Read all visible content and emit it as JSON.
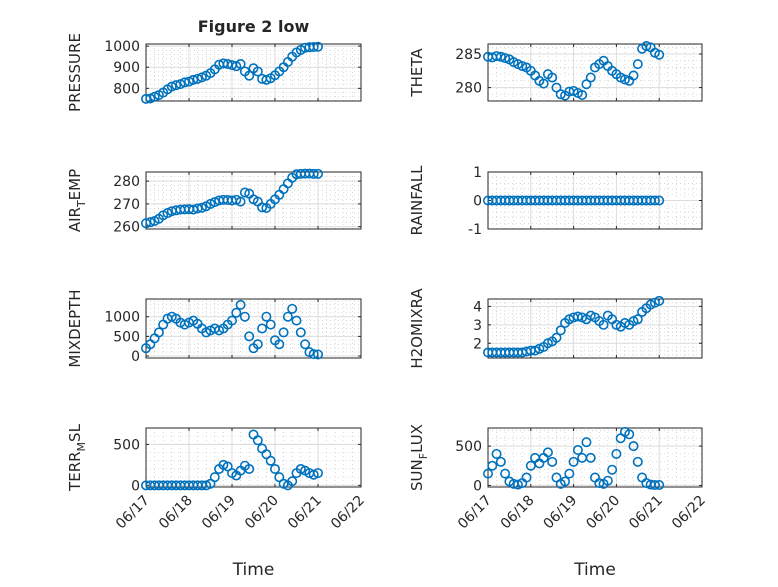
{
  "figure": {
    "xlabel": "Time",
    "xticks": [
      "06/17",
      "06/18",
      "06/19",
      "06/20",
      "06/21",
      "06/22"
    ],
    "marker_color": "#0072BD"
  },
  "chart_data": [
    {
      "type": "scatter",
      "title": "Figure 2 low",
      "ylabel_main": "PRESSURE",
      "ylabel_sub": "",
      "ylabel_tail": "",
      "ylim": [
        740,
        1010
      ],
      "yticks": [
        800,
        900,
        1000
      ],
      "ytick_labels": [
        "800",
        "900",
        "1000"
      ],
      "x": [
        0,
        0.1,
        0.2,
        0.3,
        0.4,
        0.5,
        0.6,
        0.7,
        0.8,
        0.9,
        1.0,
        1.1,
        1.2,
        1.3,
        1.4,
        1.5,
        1.6,
        1.7,
        1.8,
        1.9,
        2.0,
        2.1,
        2.2,
        2.3,
        2.4,
        2.5,
        2.6,
        2.7,
        2.8,
        2.9,
        3.0,
        3.1,
        3.2,
        3.3,
        3.4,
        3.5,
        3.6,
        3.7,
        3.8,
        3.9,
        4.0
      ],
      "y": [
        750,
        752,
        760,
        768,
        780,
        795,
        808,
        815,
        820,
        828,
        832,
        840,
        845,
        852,
        860,
        872,
        890,
        912,
        918,
        915,
        910,
        905,
        915,
        880,
        860,
        895,
        880,
        845,
        840,
        848,
        862,
        880,
        900,
        925,
        950,
        970,
        982,
        992,
        995,
        996,
        997
      ]
    },
    {
      "type": "scatter",
      "title": "",
      "ylabel_main": "THETA",
      "ylabel_sub": "",
      "ylabel_tail": "",
      "ylim": [
        278,
        286.5
      ],
      "yticks": [
        280,
        285
      ],
      "ytick_labels": [
        "280",
        "285"
      ],
      "x": [
        0,
        0.1,
        0.2,
        0.3,
        0.4,
        0.5,
        0.6,
        0.7,
        0.8,
        0.9,
        1.0,
        1.1,
        1.2,
        1.3,
        1.4,
        1.5,
        1.6,
        1.7,
        1.8,
        1.9,
        2.0,
        2.1,
        2.2,
        2.3,
        2.4,
        2.5,
        2.6,
        2.7,
        2.8,
        2.9,
        3.0,
        3.1,
        3.2,
        3.3,
        3.4,
        3.5,
        3.6,
        3.7,
        3.8,
        3.9,
        4.0
      ],
      "y": [
        284.6,
        284.5,
        284.7,
        284.6,
        284.4,
        284.2,
        283.8,
        283.5,
        283.2,
        283.0,
        282.5,
        281.8,
        281.0,
        280.6,
        282.0,
        281.5,
        280.0,
        279.0,
        278.8,
        279.4,
        279.5,
        279.2,
        278.9,
        280.5,
        281.5,
        283.0,
        283.5,
        284.0,
        283.2,
        282.5,
        282.0,
        281.5,
        281.2,
        281.0,
        281.8,
        283.5,
        285.8,
        286.2,
        286.0,
        285.2,
        284.9
      ]
    },
    {
      "type": "scatter",
      "title": "",
      "ylabel_main": "AIR",
      "ylabel_sub": "T",
      "ylabel_tail": "EMP",
      "ylim": [
        259,
        284
      ],
      "yticks": [
        260,
        270,
        280
      ],
      "ytick_labels": [
        "260",
        "270",
        "280"
      ],
      "x": [
        0,
        0.1,
        0.2,
        0.3,
        0.4,
        0.5,
        0.6,
        0.7,
        0.8,
        0.9,
        1.0,
        1.1,
        1.2,
        1.3,
        1.4,
        1.5,
        1.6,
        1.7,
        1.8,
        1.9,
        2.0,
        2.1,
        2.2,
        2.3,
        2.4,
        2.5,
        2.6,
        2.7,
        2.8,
        2.9,
        3.0,
        3.1,
        3.2,
        3.3,
        3.4,
        3.5,
        3.6,
        3.7,
        3.8,
        3.9,
        4.0
      ],
      "y": [
        261.5,
        262,
        262.5,
        263.5,
        265,
        266,
        266.8,
        267.2,
        267.5,
        267.6,
        267.7,
        267.5,
        268,
        268.3,
        269,
        270,
        270.8,
        271.5,
        271.8,
        271.7,
        271.5,
        271.8,
        271,
        275,
        274.5,
        272,
        271,
        268.5,
        268.2,
        270,
        272,
        274,
        276.5,
        279,
        281.5,
        283,
        283.2,
        283.3,
        283.3,
        283.2,
        283.2
      ]
    },
    {
      "type": "scatter",
      "title": "",
      "ylabel_main": "RAINFALL",
      "ylabel_sub": "",
      "ylabel_tail": "",
      "ylim": [
        -1,
        1
      ],
      "yticks": [
        -1,
        0,
        1
      ],
      "ytick_labels": [
        "-1",
        "0",
        "1"
      ],
      "x": [
        0,
        0.1,
        0.2,
        0.3,
        0.4,
        0.5,
        0.6,
        0.7,
        0.8,
        0.9,
        1.0,
        1.1,
        1.2,
        1.3,
        1.4,
        1.5,
        1.6,
        1.7,
        1.8,
        1.9,
        2.0,
        2.1,
        2.2,
        2.3,
        2.4,
        2.5,
        2.6,
        2.7,
        2.8,
        2.9,
        3.0,
        3.1,
        3.2,
        3.3,
        3.4,
        3.5,
        3.6,
        3.7,
        3.8,
        3.9,
        4.0
      ],
      "y": [
        0,
        0,
        0,
        0,
        0,
        0,
        0,
        0,
        0,
        0,
        0,
        0,
        0,
        0,
        0,
        0,
        0,
        0,
        0,
        0,
        0,
        0,
        0,
        0,
        0,
        0,
        0,
        0,
        0,
        0,
        0,
        0,
        0,
        0,
        0,
        0,
        0,
        0,
        0,
        0,
        0
      ]
    },
    {
      "type": "scatter",
      "title": "",
      "ylabel_main": "MIXDEPTH",
      "ylabel_sub": "",
      "ylabel_tail": "",
      "ylim": [
        -50,
        1450
      ],
      "yticks": [
        0,
        500,
        1000
      ],
      "ytick_labels": [
        "0",
        "500",
        "1000"
      ],
      "x": [
        0,
        0.1,
        0.2,
        0.3,
        0.4,
        0.5,
        0.6,
        0.7,
        0.8,
        0.9,
        1.0,
        1.1,
        1.2,
        1.3,
        1.4,
        1.5,
        1.6,
        1.7,
        1.8,
        1.9,
        2.0,
        2.1,
        2.2,
        2.3,
        2.4,
        2.5,
        2.6,
        2.7,
        2.8,
        2.9,
        3.0,
        3.1,
        3.2,
        3.3,
        3.4,
        3.5,
        3.6,
        3.7,
        3.8,
        3.9,
        4.0
      ],
      "y": [
        200,
        300,
        450,
        600,
        800,
        950,
        1000,
        950,
        850,
        800,
        850,
        900,
        820,
        700,
        600,
        650,
        700,
        650,
        700,
        800,
        900,
        1100,
        1300,
        1000,
        500,
        200,
        300,
        700,
        1000,
        800,
        400,
        300,
        600,
        1000,
        1200,
        900,
        600,
        300,
        100,
        50,
        40
      ]
    },
    {
      "type": "scatter",
      "title": "",
      "ylabel_main": "H2OMIXRA",
      "ylabel_sub": "",
      "ylabel_tail": "",
      "ylim": [
        1.2,
        4.4
      ],
      "yticks": [
        2,
        3,
        4
      ],
      "ytick_labels": [
        "2",
        "3",
        "4"
      ],
      "x": [
        0,
        0.1,
        0.2,
        0.3,
        0.4,
        0.5,
        0.6,
        0.7,
        0.8,
        0.9,
        1.0,
        1.1,
        1.2,
        1.3,
        1.4,
        1.5,
        1.6,
        1.7,
        1.8,
        1.9,
        2.0,
        2.1,
        2.2,
        2.3,
        2.4,
        2.5,
        2.6,
        2.7,
        2.8,
        2.9,
        3.0,
        3.1,
        3.2,
        3.3,
        3.4,
        3.5,
        3.6,
        3.7,
        3.8,
        3.9,
        4.0
      ],
      "y": [
        1.5,
        1.5,
        1.5,
        1.5,
        1.5,
        1.5,
        1.5,
        1.5,
        1.5,
        1.55,
        1.6,
        1.6,
        1.7,
        1.8,
        2.0,
        2.1,
        2.3,
        2.7,
        3.1,
        3.3,
        3.4,
        3.45,
        3.4,
        3.3,
        3.5,
        3.4,
        3.2,
        3.0,
        3.5,
        3.3,
        3.0,
        2.9,
        3.1,
        3.0,
        3.2,
        3.3,
        3.7,
        3.9,
        4.1,
        4.2,
        4.3
      ]
    },
    {
      "type": "scatter",
      "title": "",
      "ylabel_main": "TERR",
      "ylabel_sub": "M",
      "ylabel_tail": "SL",
      "ylim": [
        -20,
        700
      ],
      "yticks": [
        0,
        500
      ],
      "ytick_labels": [
        "0",
        "500"
      ],
      "x": [
        0,
        0.1,
        0.2,
        0.3,
        0.4,
        0.5,
        0.6,
        0.7,
        0.8,
        0.9,
        1.0,
        1.1,
        1.2,
        1.3,
        1.4,
        1.5,
        1.6,
        1.7,
        1.8,
        1.9,
        2.0,
        2.1,
        2.2,
        2.3,
        2.4,
        2.5,
        2.6,
        2.7,
        2.8,
        2.9,
        3.0,
        3.1,
        3.2,
        3.3,
        3.4,
        3.5,
        3.6,
        3.7,
        3.8,
        3.9,
        4.0
      ],
      "y": [
        0,
        0,
        0,
        0,
        0,
        0,
        0,
        0,
        0,
        0,
        0,
        0,
        0,
        0,
        0,
        20,
        100,
        200,
        250,
        230,
        150,
        120,
        180,
        240,
        200,
        620,
        550,
        450,
        380,
        300,
        200,
        100,
        20,
        0,
        50,
        150,
        200,
        180,
        150,
        130,
        150
      ]
    },
    {
      "type": "scatter",
      "title": "",
      "ylabel_main": "SUN",
      "ylabel_sub": "F",
      "ylabel_tail": "LUX",
      "ylim": [
        -20,
        730
      ],
      "yticks": [
        0,
        500
      ],
      "ytick_labels": [
        "0",
        "500"
      ],
      "x": [
        0,
        0.1,
        0.2,
        0.3,
        0.4,
        0.5,
        0.6,
        0.7,
        0.8,
        0.9,
        1.0,
        1.1,
        1.2,
        1.3,
        1.4,
        1.5,
        1.6,
        1.7,
        1.8,
        1.9,
        2.0,
        2.1,
        2.2,
        2.3,
        2.4,
        2.5,
        2.6,
        2.7,
        2.8,
        2.9,
        3.0,
        3.1,
        3.2,
        3.3,
        3.4,
        3.5,
        3.6,
        3.7,
        3.8,
        3.9,
        4.0
      ],
      "y": [
        150,
        250,
        400,
        300,
        150,
        50,
        20,
        10,
        30,
        100,
        250,
        350,
        280,
        350,
        420,
        300,
        100,
        20,
        50,
        150,
        300,
        450,
        350,
        550,
        350,
        100,
        30,
        20,
        60,
        200,
        400,
        600,
        680,
        650,
        500,
        300,
        100,
        30,
        10,
        5,
        5
      ]
    }
  ]
}
